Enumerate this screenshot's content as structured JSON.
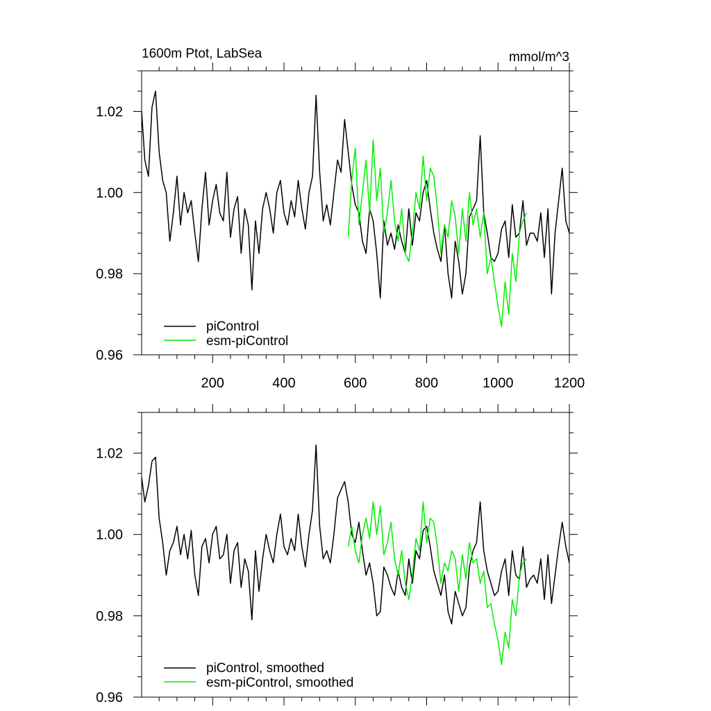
{
  "colors": {
    "picontrol": "#000000",
    "esm_picontrol": "#00ee00"
  },
  "chart_data": [
    {
      "type": "line",
      "title": "1600m Ptot, LabSea",
      "units": "mmol/m^3",
      "xlim": [
        1,
        1200
      ],
      "ylim": [
        0.96,
        1.03
      ],
      "x_ticks": [
        200,
        400,
        600,
        800,
        1000,
        1200
      ],
      "x_tick_labels": [
        "200",
        "400",
        "600",
        "800",
        "1000",
        "1200"
      ],
      "y_ticks": [
        0.96,
        0.98,
        1.0,
        1.02
      ],
      "y_tick_labels": [
        "0.96",
        "0.98",
        "1.00",
        "1.02"
      ],
      "legend": "bottom-left",
      "series": [
        {
          "name": "piControl",
          "color": "#000000",
          "x": [
            1,
            10,
            20,
            30,
            40,
            50,
            60,
            70,
            80,
            90,
            100,
            110,
            120,
            130,
            140,
            150,
            160,
            170,
            180,
            190,
            200,
            210,
            220,
            230,
            240,
            250,
            260,
            270,
            280,
            290,
            300,
            310,
            320,
            330,
            340,
            350,
            360,
            370,
            380,
            390,
            400,
            410,
            420,
            430,
            440,
            450,
            460,
            470,
            480,
            490,
            500,
            510,
            520,
            530,
            540,
            550,
            560,
            570,
            580,
            590,
            600,
            610,
            620,
            630,
            640,
            650,
            660,
            670,
            680,
            690,
            700,
            710,
            720,
            730,
            740,
            750,
            760,
            770,
            780,
            790,
            800,
            810,
            820,
            830,
            840,
            850,
            860,
            870,
            880,
            890,
            900,
            910,
            920,
            930,
            940,
            950,
            960,
            970,
            980,
            990,
            1000,
            1010,
            1020,
            1030,
            1040,
            1050,
            1060,
            1070,
            1080,
            1090,
            1100,
            1110,
            1120,
            1130,
            1140,
            1150,
            1160,
            1170,
            1180,
            1190,
            1200
          ],
          "values": [
            1.02,
            1.008,
            1.004,
            1.021,
            1.025,
            1.01,
            1.003,
            1.0,
            0.988,
            0.995,
            1.004,
            0.992,
            1.0,
            0.995,
            0.998,
            0.99,
            0.983,
            0.996,
            1.005,
            0.992,
            0.998,
            1.002,
            0.995,
            0.993,
            1.005,
            0.989,
            0.996,
            0.999,
            0.985,
            0.996,
            0.992,
            0.976,
            0.993,
            0.985,
            0.996,
            1.0,
            0.996,
            0.99,
            1.0,
            1.003,
            0.995,
            0.992,
            0.998,
            0.994,
            1.003,
            0.996,
            0.991,
            1.0,
            1.004,
            1.024,
            1.005,
            0.993,
            0.997,
            0.992,
            1.0,
            1.008,
            1.005,
            1.018,
            1.01,
            1.002,
            0.997,
            0.995,
            0.988,
            0.985,
            0.996,
            0.993,
            0.985,
            0.974,
            0.993,
            0.987,
            0.99,
            0.986,
            0.992,
            0.988,
            0.985,
            0.996,
            0.987,
            0.995,
            0.993,
            1.0,
            1.003,
            0.996,
            0.99,
            0.986,
            0.983,
            0.992,
            0.98,
            0.974,
            0.988,
            0.983,
            0.975,
            0.98,
            0.994,
            0.996,
            0.998,
            1.014,
            0.995,
            0.99,
            0.984,
            0.983,
            0.985,
            0.991,
            0.993,
            0.984,
            0.997,
            0.989,
            0.99,
            0.998,
            0.987,
            0.99,
            0.99,
            0.988,
            0.995,
            0.984,
            0.996,
            0.975,
            0.99,
            0.998,
            1.006,
            0.993,
            0.99
          ]
        },
        {
          "name": "esm-piControl",
          "color": "#00ee00",
          "x": [
            580,
            590,
            600,
            610,
            620,
            630,
            640,
            650,
            660,
            670,
            680,
            690,
            700,
            710,
            720,
            730,
            740,
            750,
            760,
            770,
            780,
            790,
            800,
            810,
            820,
            830,
            840,
            850,
            860,
            870,
            880,
            890,
            900,
            910,
            920,
            930,
            940,
            950,
            960,
            970,
            980,
            990,
            1000,
            1010,
            1020,
            1030,
            1040,
            1050,
            1060,
            1070,
            1080
          ],
          "values": [
            0.989,
            1.003,
            1.011,
            0.992,
            1.0,
            1.008,
            0.995,
            1.013,
            0.998,
            1.006,
            0.99,
            0.995,
            1.003,
            0.993,
            0.988,
            0.996,
            0.985,
            0.983,
            0.99,
            1.0,
            0.996,
            1.009,
            0.998,
            1.006,
            1.004,
            0.996,
            0.985,
            0.992,
            0.989,
            0.998,
            0.994,
            0.985,
            0.996,
            0.988,
            1.0,
            0.992,
            0.996,
            0.989,
            0.995,
            0.98,
            0.984,
            0.978,
            0.972,
            0.967,
            0.978,
            0.97,
            0.985,
            0.978,
            0.99,
            0.993,
            0.995
          ]
        }
      ]
    },
    {
      "type": "line",
      "xlim": [
        1,
        1200
      ],
      "ylim": [
        0.96,
        1.03
      ],
      "y_ticks": [
        0.96,
        0.98,
        1.0,
        1.02
      ],
      "y_tick_labels": [
        "0.96",
        "0.98",
        "1.00",
        "1.02"
      ],
      "legend": "bottom-left",
      "series": [
        {
          "name": "piControl, smoothed",
          "color": "#000000",
          "x": [
            1,
            10,
            20,
            30,
            40,
            50,
            60,
            70,
            80,
            90,
            100,
            110,
            120,
            130,
            140,
            150,
            160,
            170,
            180,
            190,
            200,
            210,
            220,
            230,
            240,
            250,
            260,
            270,
            280,
            290,
            300,
            310,
            320,
            330,
            340,
            350,
            360,
            370,
            380,
            390,
            400,
            410,
            420,
            430,
            440,
            450,
            460,
            470,
            480,
            490,
            500,
            510,
            520,
            530,
            540,
            550,
            560,
            570,
            580,
            590,
            600,
            610,
            620,
            630,
            640,
            650,
            660,
            670,
            680,
            690,
            700,
            710,
            720,
            730,
            740,
            750,
            760,
            770,
            780,
            790,
            800,
            810,
            820,
            830,
            840,
            850,
            860,
            870,
            880,
            890,
            900,
            910,
            920,
            930,
            940,
            950,
            960,
            970,
            980,
            990,
            1000,
            1010,
            1020,
            1030,
            1040,
            1050,
            1060,
            1070,
            1080,
            1090,
            1100,
            1110,
            1120,
            1130,
            1140,
            1150,
            1160,
            1170,
            1180,
            1190,
            1200
          ],
          "values": [
            1.014,
            1.008,
            1.012,
            1.018,
            1.019,
            1.004,
            0.998,
            0.99,
            0.996,
            0.998,
            1.002,
            0.995,
            1.0,
            0.994,
            1.001,
            0.99,
            0.985,
            0.997,
            0.999,
            0.993,
            1.0,
            1.002,
            0.994,
            0.995,
            1.0,
            0.988,
            0.996,
            0.998,
            0.987,
            0.994,
            0.991,
            0.979,
            0.996,
            0.986,
            0.994,
            1.0,
            0.996,
            0.993,
            1.0,
            1.005,
            0.997,
            0.995,
            0.999,
            0.996,
            1.005,
            0.997,
            0.992,
            1.0,
            1.006,
            1.022,
            1.002,
            0.994,
            0.996,
            0.993,
            1.0,
            1.009,
            1.011,
            1.013,
            1.008,
            1.0,
            0.998,
            1.003,
            0.996,
            0.99,
            0.993,
            0.988,
            0.98,
            0.981,
            0.992,
            0.99,
            0.987,
            0.985,
            0.991,
            0.987,
            0.985,
            0.994,
            0.988,
            0.996,
            0.994,
            1.001,
            1.002,
            0.997,
            0.991,
            0.988,
            0.985,
            0.99,
            0.981,
            0.978,
            0.986,
            0.983,
            0.98,
            0.982,
            0.992,
            0.996,
            0.998,
            1.008,
            0.996,
            0.991,
            0.988,
            0.985,
            0.986,
            0.991,
            0.994,
            0.985,
            0.996,
            0.99,
            0.989,
            0.997,
            0.987,
            0.989,
            0.99,
            0.988,
            0.994,
            0.984,
            0.995,
            0.983,
            0.99,
            0.997,
            1.003,
            0.997,
            0.993
          ]
        },
        {
          "name": "esm-piControl, smoothed",
          "color": "#00ee00",
          "x": [
            580,
            590,
            600,
            610,
            620,
            630,
            640,
            650,
            660,
            670,
            680,
            690,
            700,
            710,
            720,
            730,
            740,
            750,
            760,
            770,
            780,
            790,
            800,
            810,
            820,
            830,
            840,
            850,
            860,
            870,
            880,
            890,
            900,
            910,
            920,
            930,
            940,
            950,
            960,
            970,
            980,
            990,
            1000,
            1010,
            1020,
            1030,
            1040,
            1050,
            1060,
            1070,
            1080
          ],
          "values": [
            0.997,
            1.002,
            0.996,
            0.993,
            1.0,
            1.004,
            0.999,
            1.008,
            1.0,
            1.007,
            0.995,
            0.998,
            1.003,
            0.994,
            0.99,
            0.996,
            0.988,
            0.984,
            0.99,
            0.999,
            0.996,
            1.008,
            0.998,
            1.004,
            1.003,
            0.997,
            0.988,
            0.993,
            0.991,
            0.996,
            0.994,
            0.986,
            0.995,
            0.989,
            0.998,
            0.993,
            0.994,
            0.988,
            0.991,
            0.982,
            0.983,
            0.978,
            0.974,
            0.968,
            0.976,
            0.972,
            0.984,
            0.98,
            0.99,
            0.993,
            0.994
          ]
        }
      ]
    }
  ]
}
